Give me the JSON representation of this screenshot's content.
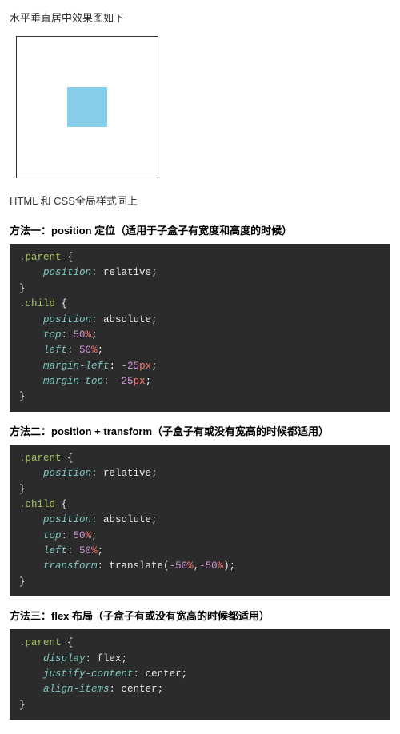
{
  "intro": "水平垂直居中效果图如下",
  "demo": {
    "parent_size": 176,
    "child_size": 50,
    "child_color": "#87ceeb",
    "border_color": "#333333"
  },
  "note": "HTML 和 CSS全局样式同上",
  "methods": [
    {
      "title": "方法一：position 定位（适用于子盒子有宽度和高度的时候）",
      "code": [
        {
          "t": "sel",
          "v": ".parent"
        },
        {
          "t": "sp",
          "v": " "
        },
        {
          "t": "brace",
          "v": "{"
        },
        {
          "t": "nl"
        },
        {
          "t": "sp",
          "v": "    "
        },
        {
          "t": "prop",
          "v": "position"
        },
        {
          "t": "punct",
          "v": ": "
        },
        {
          "t": "val-kw",
          "v": "relative"
        },
        {
          "t": "punct",
          "v": ";"
        },
        {
          "t": "nl"
        },
        {
          "t": "brace",
          "v": "}"
        },
        {
          "t": "nl"
        },
        {
          "t": "sel",
          "v": ".child"
        },
        {
          "t": "sp",
          "v": " "
        },
        {
          "t": "brace",
          "v": "{"
        },
        {
          "t": "nl"
        },
        {
          "t": "sp",
          "v": "    "
        },
        {
          "t": "prop",
          "v": "position"
        },
        {
          "t": "punct",
          "v": ": "
        },
        {
          "t": "val-kw",
          "v": "absolute"
        },
        {
          "t": "punct",
          "v": ";"
        },
        {
          "t": "nl"
        },
        {
          "t": "sp",
          "v": "    "
        },
        {
          "t": "prop",
          "v": "top"
        },
        {
          "t": "punct",
          "v": ": "
        },
        {
          "t": "val-num",
          "v": "50"
        },
        {
          "t": "val-unit",
          "v": "%"
        },
        {
          "t": "punct",
          "v": ";"
        },
        {
          "t": "nl"
        },
        {
          "t": "sp",
          "v": "    "
        },
        {
          "t": "prop",
          "v": "left"
        },
        {
          "t": "punct",
          "v": ": "
        },
        {
          "t": "val-num",
          "v": "50"
        },
        {
          "t": "val-unit",
          "v": "%"
        },
        {
          "t": "punct",
          "v": ";"
        },
        {
          "t": "nl"
        },
        {
          "t": "sp",
          "v": "    "
        },
        {
          "t": "prop",
          "v": "margin-left"
        },
        {
          "t": "punct",
          "v": ": "
        },
        {
          "t": "val-num",
          "v": "-25"
        },
        {
          "t": "val-unit",
          "v": "px"
        },
        {
          "t": "punct",
          "v": ";"
        },
        {
          "t": "nl"
        },
        {
          "t": "sp",
          "v": "    "
        },
        {
          "t": "prop",
          "v": "margin-top"
        },
        {
          "t": "punct",
          "v": ": "
        },
        {
          "t": "val-num",
          "v": "-25"
        },
        {
          "t": "val-unit",
          "v": "px"
        },
        {
          "t": "punct",
          "v": ";"
        },
        {
          "t": "nl"
        },
        {
          "t": "brace",
          "v": "}"
        }
      ]
    },
    {
      "title": "方法二：position + transform（子盒子有或没有宽高的时候都适用）",
      "code": [
        {
          "t": "sel",
          "v": ".parent"
        },
        {
          "t": "sp",
          "v": " "
        },
        {
          "t": "brace",
          "v": "{"
        },
        {
          "t": "nl"
        },
        {
          "t": "sp",
          "v": "    "
        },
        {
          "t": "prop",
          "v": "position"
        },
        {
          "t": "punct",
          "v": ": "
        },
        {
          "t": "val-kw",
          "v": "relative"
        },
        {
          "t": "punct",
          "v": ";"
        },
        {
          "t": "nl"
        },
        {
          "t": "brace",
          "v": "}"
        },
        {
          "t": "nl"
        },
        {
          "t": "sel",
          "v": ".child"
        },
        {
          "t": "sp",
          "v": " "
        },
        {
          "t": "brace",
          "v": "{"
        },
        {
          "t": "nl"
        },
        {
          "t": "sp",
          "v": "    "
        },
        {
          "t": "prop",
          "v": "position"
        },
        {
          "t": "punct",
          "v": ": "
        },
        {
          "t": "val-kw",
          "v": "absolute"
        },
        {
          "t": "punct",
          "v": ";"
        },
        {
          "t": "nl"
        },
        {
          "t": "sp",
          "v": "    "
        },
        {
          "t": "prop",
          "v": "top"
        },
        {
          "t": "punct",
          "v": ": "
        },
        {
          "t": "val-num",
          "v": "50"
        },
        {
          "t": "val-unit",
          "v": "%"
        },
        {
          "t": "punct",
          "v": ";"
        },
        {
          "t": "nl"
        },
        {
          "t": "sp",
          "v": "    "
        },
        {
          "t": "prop",
          "v": "left"
        },
        {
          "t": "punct",
          "v": ": "
        },
        {
          "t": "val-num",
          "v": "50"
        },
        {
          "t": "val-unit",
          "v": "%"
        },
        {
          "t": "punct",
          "v": ";"
        },
        {
          "t": "nl"
        },
        {
          "t": "sp",
          "v": "    "
        },
        {
          "t": "prop",
          "v": "transform"
        },
        {
          "t": "punct",
          "v": ": "
        },
        {
          "t": "fn",
          "v": "translate("
        },
        {
          "t": "val-num",
          "v": "-50"
        },
        {
          "t": "val-unit",
          "v": "%"
        },
        {
          "t": "punct",
          "v": ","
        },
        {
          "t": "val-num",
          "v": "-50"
        },
        {
          "t": "val-unit",
          "v": "%"
        },
        {
          "t": "fn",
          "v": ")"
        },
        {
          "t": "punct",
          "v": ";"
        },
        {
          "t": "nl"
        },
        {
          "t": "brace",
          "v": "}"
        }
      ]
    },
    {
      "title": "方法三：flex 布局（子盒子有或没有宽高的时候都适用）",
      "code": [
        {
          "t": "sel",
          "v": ".parent"
        },
        {
          "t": "sp",
          "v": " "
        },
        {
          "t": "brace",
          "v": "{"
        },
        {
          "t": "nl"
        },
        {
          "t": "sp",
          "v": "    "
        },
        {
          "t": "prop",
          "v": "display"
        },
        {
          "t": "punct",
          "v": ": "
        },
        {
          "t": "val-kw",
          "v": "flex"
        },
        {
          "t": "punct",
          "v": ";"
        },
        {
          "t": "nl"
        },
        {
          "t": "sp",
          "v": "    "
        },
        {
          "t": "prop",
          "v": "justify-content"
        },
        {
          "t": "punct",
          "v": ": "
        },
        {
          "t": "val-kw",
          "v": "center"
        },
        {
          "t": "punct",
          "v": ";"
        },
        {
          "t": "nl"
        },
        {
          "t": "sp",
          "v": "    "
        },
        {
          "t": "prop",
          "v": "align-items"
        },
        {
          "t": "punct",
          "v": ": "
        },
        {
          "t": "val-kw",
          "v": "center"
        },
        {
          "t": "punct",
          "v": ";"
        },
        {
          "t": "nl"
        },
        {
          "t": "brace",
          "v": "}"
        }
      ]
    }
  ],
  "code_style": {
    "background": "#2b2b2b",
    "selector_color": "#a5c261",
    "property_color": "#7ec6c0",
    "number_color": "#d197d9",
    "unit_color": "#ff7b72",
    "text_color": "#e8e8e8",
    "font_size": 12.5
  }
}
